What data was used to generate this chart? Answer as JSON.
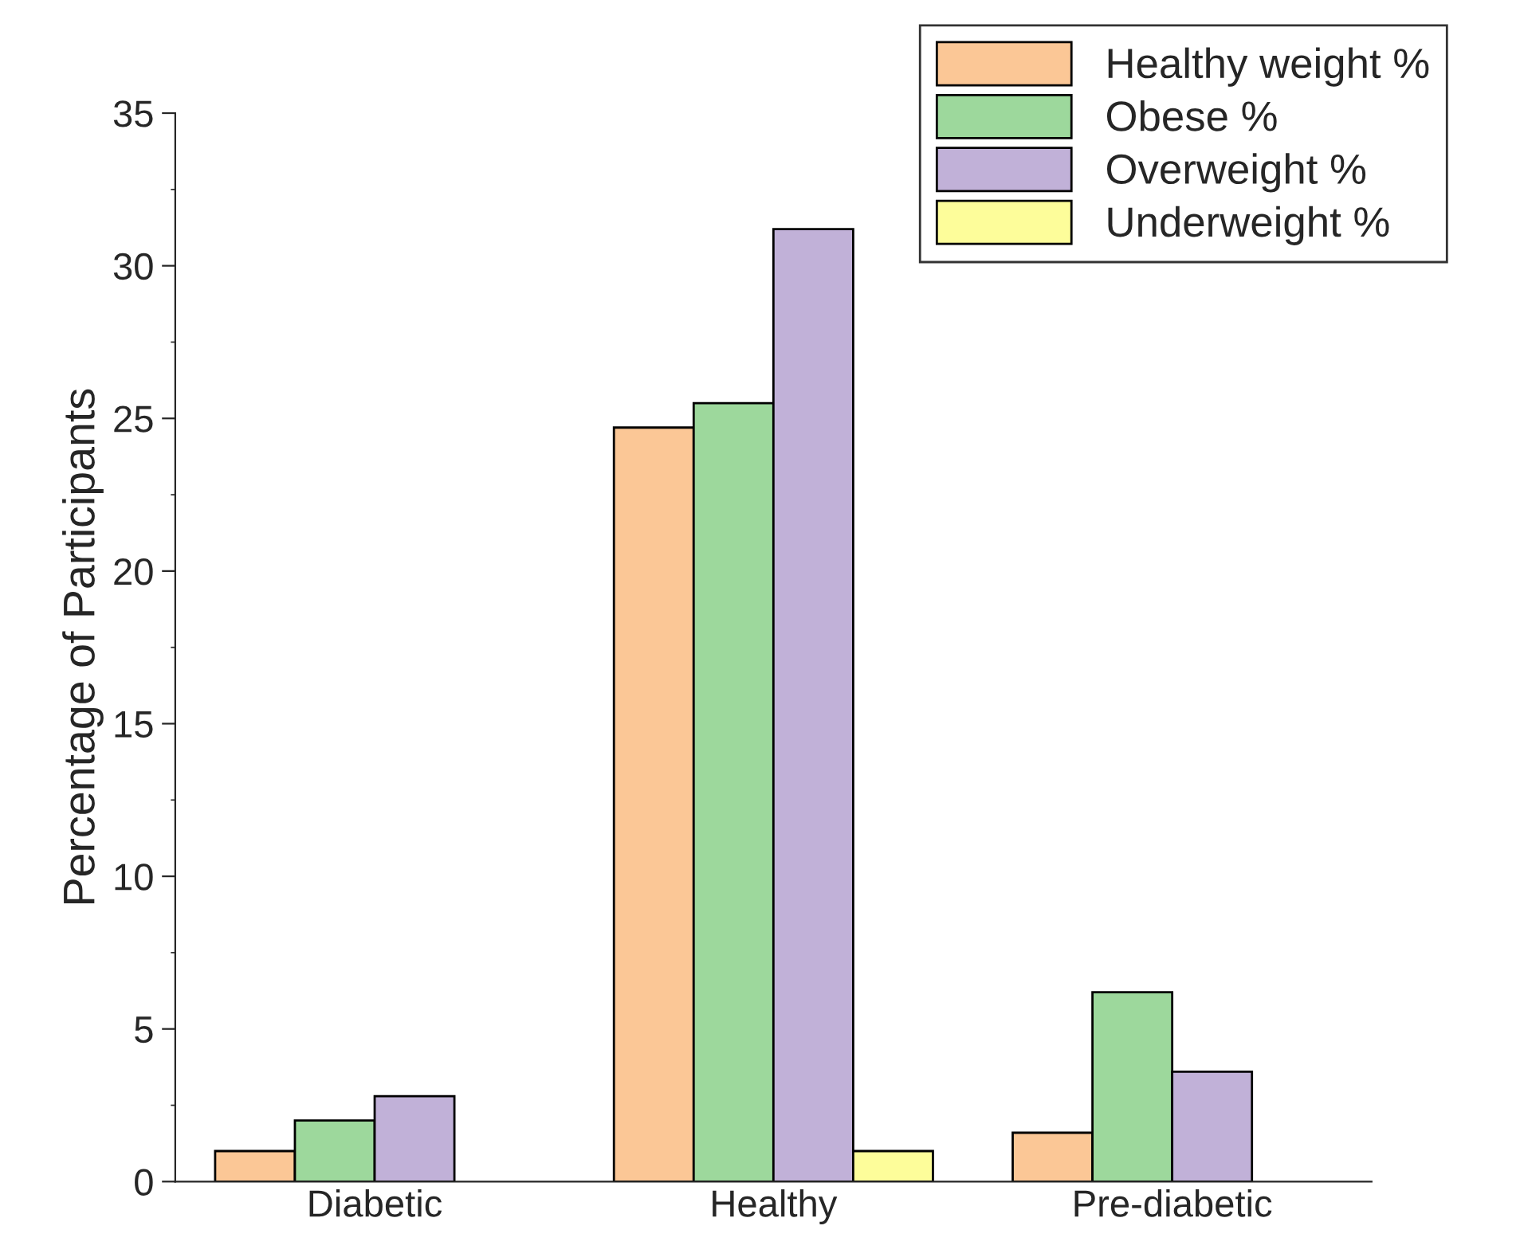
{
  "chart_data": {
    "type": "bar",
    "ylabel": "Percentage of Participants",
    "categories": [
      "Diabetic",
      "Healthy",
      "Pre-diabetic"
    ],
    "series": [
      {
        "name": "Healthy weight %",
        "color": "#fbc796",
        "values": [
          1.0,
          24.7,
          1.6
        ]
      },
      {
        "name": "Obese %",
        "color": "#9dd89c",
        "values": [
          2.0,
          25.5,
          6.2
        ]
      },
      {
        "name": "Overweight %",
        "color": "#c1b1d8",
        "values": [
          2.8,
          31.2,
          3.6
        ]
      },
      {
        "name": "Underweight %",
        "color": "#fdfd9a",
        "values": [
          null,
          1.0,
          null
        ]
      }
    ],
    "ylim": [
      0,
      35
    ],
    "yticks": [
      0,
      5,
      10,
      15,
      20,
      25,
      30,
      35
    ],
    "grid": false,
    "legend": "top right"
  }
}
